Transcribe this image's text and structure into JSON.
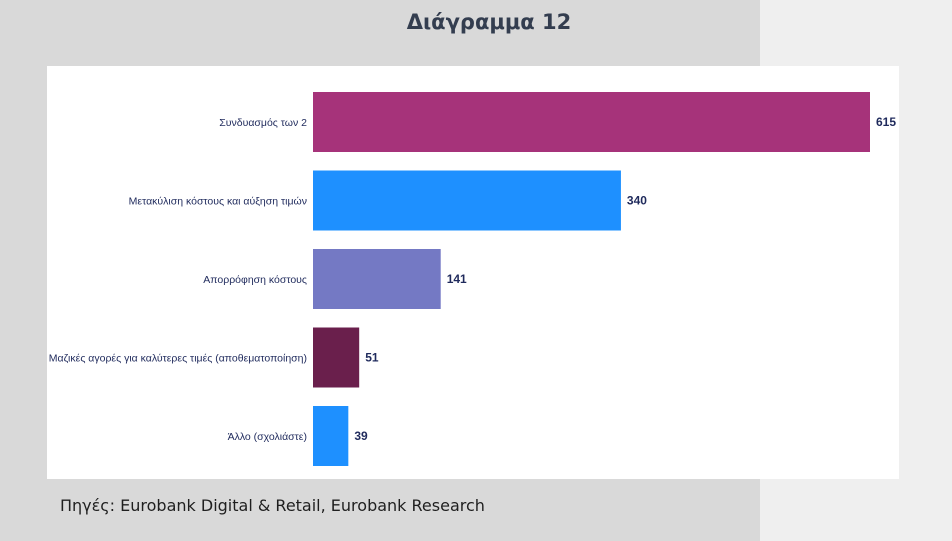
{
  "header": {
    "title": "Διάγραμμα 12"
  },
  "footer": {
    "source": "Πηγές: Eurobank Digital & Retail, Eurobank Research"
  },
  "chart_data": {
    "type": "bar",
    "orientation": "horizontal",
    "title": "",
    "xlabel": "",
    "ylabel": "",
    "grid": false,
    "legend": "none",
    "categories": [
      "Συνδυασμός των 2",
      "Μετακύλιση κόστους και αύξηση τιμών",
      "Απορρόφηση κόστους",
      "Μαζικές αγορές για καλύτερες τιμές (αποθεματοποίηση)",
      "Άλλο (σχολιάστε)"
    ],
    "values": [
      615,
      340,
      141,
      51,
      39
    ],
    "data_labels": [
      "615",
      "340",
      "141",
      "51",
      "39"
    ],
    "colors": [
      "#a6337a",
      "#1e90ff",
      "#7479c4",
      "#6a1f4c",
      "#1e90ff"
    ],
    "label_color": "#1f2a5c",
    "xlim": [
      0,
      615
    ]
  }
}
